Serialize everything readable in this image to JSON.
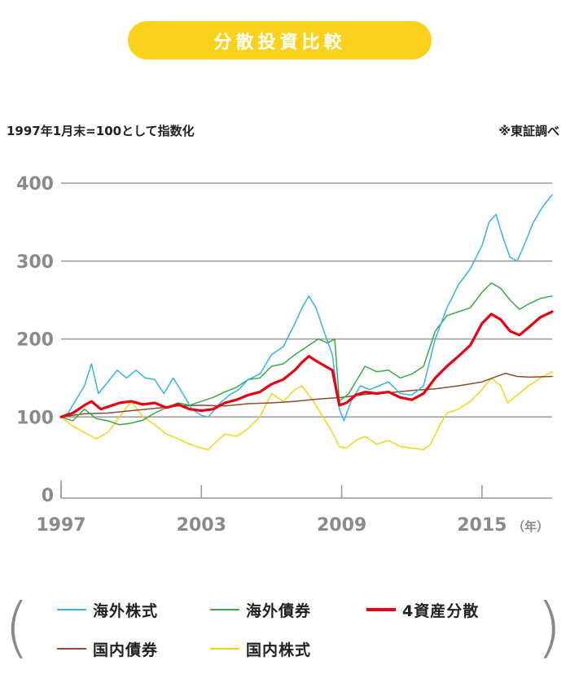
{
  "header": {
    "title": "分散投資比較"
  },
  "notes": {
    "base": "1997年1月末=100として指数化",
    "source": "※東証調べ"
  },
  "chart_data": {
    "type": "line",
    "ylim": [
      0,
      400
    ],
    "yticks": [
      {
        "v": 0,
        "label": "0"
      },
      {
        "v": 100,
        "label": "100"
      },
      {
        "v": 200,
        "label": "200"
      },
      {
        "v": 300,
        "label": "300"
      },
      {
        "v": 400,
        "label": "400"
      }
    ],
    "xlim": [
      1997.0,
      2018.0
    ],
    "xticks": [
      {
        "v": 1997,
        "label": "1997"
      },
      {
        "v": 2003,
        "label": "2003"
      },
      {
        "v": 2009,
        "label": "2009"
      },
      {
        "v": 2015,
        "label": "2015"
      }
    ],
    "x_unit": "（年）",
    "grid": true,
    "series": [
      {
        "name": "国内株式",
        "color": "#f5d21c",
        "width": 1.5,
        "points": [
          [
            1997.0,
            100
          ],
          [
            1997.5,
            88
          ],
          [
            1998.0,
            80
          ],
          [
            1998.5,
            72
          ],
          [
            1999.0,
            80
          ],
          [
            1999.5,
            100
          ],
          [
            2000.0,
            120
          ],
          [
            2000.5,
            100
          ],
          [
            2001.0,
            90
          ],
          [
            2001.5,
            78
          ],
          [
            2002.0,
            72
          ],
          [
            2002.5,
            65
          ],
          [
            2003.0,
            60
          ],
          [
            2003.3,
            58
          ],
          [
            2003.7,
            70
          ],
          [
            2004.0,
            78
          ],
          [
            2004.5,
            75
          ],
          [
            2005.0,
            85
          ],
          [
            2005.5,
            100
          ],
          [
            2006.0,
            130
          ],
          [
            2006.5,
            120
          ],
          [
            2007.0,
            135
          ],
          [
            2007.3,
            140
          ],
          [
            2007.8,
            120
          ],
          [
            2008.2,
            100
          ],
          [
            2008.6,
            80
          ],
          [
            2008.9,
            62
          ],
          [
            2009.2,
            60
          ],
          [
            2009.6,
            70
          ],
          [
            2010.0,
            75
          ],
          [
            2010.5,
            65
          ],
          [
            2011.0,
            70
          ],
          [
            2011.5,
            62
          ],
          [
            2012.0,
            60
          ],
          [
            2012.5,
            58
          ],
          [
            2012.8,
            65
          ],
          [
            2013.2,
            90
          ],
          [
            2013.5,
            105
          ],
          [
            2014.0,
            110
          ],
          [
            2014.5,
            120
          ],
          [
            2015.0,
            135
          ],
          [
            2015.4,
            150
          ],
          [
            2015.8,
            140
          ],
          [
            2016.1,
            118
          ],
          [
            2016.5,
            128
          ],
          [
            2017.0,
            140
          ],
          [
            2017.5,
            150
          ],
          [
            2018.0,
            158
          ]
        ]
      },
      {
        "name": "国内債券",
        "color": "#8c4a32",
        "width": 1.5,
        "points": [
          [
            1997.0,
            100
          ],
          [
            1998.0,
            104
          ],
          [
            1999.0,
            105
          ],
          [
            2000.0,
            108
          ],
          [
            2001.0,
            111
          ],
          [
            2002.0,
            114
          ],
          [
            2003.0,
            115
          ],
          [
            2004.0,
            114
          ],
          [
            2005.0,
            117
          ],
          [
            2006.0,
            118
          ],
          [
            2007.0,
            120
          ],
          [
            2008.0,
            123
          ],
          [
            2009.0,
            125
          ],
          [
            2010.0,
            129
          ],
          [
            2011.0,
            131
          ],
          [
            2012.0,
            134
          ],
          [
            2013.0,
            136
          ],
          [
            2014.0,
            140
          ],
          [
            2015.0,
            145
          ],
          [
            2016.0,
            156
          ],
          [
            2016.5,
            152
          ],
          [
            2017.0,
            151
          ],
          [
            2018.0,
            152
          ]
        ]
      },
      {
        "name": "海外債券",
        "color": "#3aa845",
        "width": 1.5,
        "points": [
          [
            1997.0,
            100
          ],
          [
            1997.5,
            95
          ],
          [
            1998.0,
            110
          ],
          [
            1998.5,
            98
          ],
          [
            1999.0,
            95
          ],
          [
            1999.5,
            90
          ],
          [
            2000.0,
            92
          ],
          [
            2000.5,
            96
          ],
          [
            2001.0,
            105
          ],
          [
            2001.5,
            112
          ],
          [
            2002.0,
            118
          ],
          [
            2002.5,
            115
          ],
          [
            2003.0,
            120
          ],
          [
            2003.5,
            125
          ],
          [
            2004.0,
            132
          ],
          [
            2004.5,
            138
          ],
          [
            2005.0,
            148
          ],
          [
            2005.5,
            150
          ],
          [
            2006.0,
            165
          ],
          [
            2006.5,
            168
          ],
          [
            2007.0,
            180
          ],
          [
            2007.5,
            190
          ],
          [
            2008.0,
            200
          ],
          [
            2008.4,
            195
          ],
          [
            2008.7,
            200
          ],
          [
            2008.9,
            120
          ],
          [
            2009.3,
            130
          ],
          [
            2009.7,
            150
          ],
          [
            2010.0,
            165
          ],
          [
            2010.5,
            158
          ],
          [
            2011.0,
            160
          ],
          [
            2011.5,
            150
          ],
          [
            2012.0,
            155
          ],
          [
            2012.5,
            165
          ],
          [
            2013.0,
            210
          ],
          [
            2013.5,
            230
          ],
          [
            2014.0,
            235
          ],
          [
            2014.5,
            240
          ],
          [
            2015.0,
            260
          ],
          [
            2015.4,
            272
          ],
          [
            2015.8,
            265
          ],
          [
            2016.2,
            250
          ],
          [
            2016.6,
            238
          ],
          [
            2017.0,
            245
          ],
          [
            2017.5,
            252
          ],
          [
            2018.0,
            255
          ]
        ]
      },
      {
        "name": "海外株式",
        "color": "#33b4e5",
        "width": 1.5,
        "points": [
          [
            1997.0,
            100
          ],
          [
            1997.3,
            105
          ],
          [
            1997.6,
            120
          ],
          [
            1998.0,
            140
          ],
          [
            1998.3,
            168
          ],
          [
            1998.6,
            130
          ],
          [
            1999.0,
            145
          ],
          [
            1999.4,
            160
          ],
          [
            1999.8,
            150
          ],
          [
            2000.2,
            160
          ],
          [
            2000.6,
            150
          ],
          [
            2001.0,
            148
          ],
          [
            2001.4,
            130
          ],
          [
            2001.8,
            150
          ],
          [
            2002.2,
            130
          ],
          [
            2002.6,
            110
          ],
          [
            2003.0,
            102
          ],
          [
            2003.3,
            100
          ],
          [
            2003.8,
            118
          ],
          [
            2004.2,
            128
          ],
          [
            2004.6,
            135
          ],
          [
            2005.0,
            148
          ],
          [
            2005.5,
            155
          ],
          [
            2006.0,
            180
          ],
          [
            2006.5,
            190
          ],
          [
            2007.0,
            220
          ],
          [
            2007.3,
            240
          ],
          [
            2007.6,
            255
          ],
          [
            2007.9,
            240
          ],
          [
            2008.3,
            205
          ],
          [
            2008.6,
            180
          ],
          [
            2008.9,
            110
          ],
          [
            2009.1,
            95
          ],
          [
            2009.4,
            120
          ],
          [
            2009.8,
            140
          ],
          [
            2010.2,
            135
          ],
          [
            2010.6,
            140
          ],
          [
            2011.0,
            145
          ],
          [
            2011.5,
            130
          ],
          [
            2012.0,
            128
          ],
          [
            2012.5,
            140
          ],
          [
            2013.0,
            200
          ],
          [
            2013.5,
            240
          ],
          [
            2014.0,
            270
          ],
          [
            2014.5,
            290
          ],
          [
            2015.0,
            320
          ],
          [
            2015.3,
            350
          ],
          [
            2015.6,
            360
          ],
          [
            2015.9,
            330
          ],
          [
            2016.2,
            305
          ],
          [
            2016.5,
            300
          ],
          [
            2016.8,
            320
          ],
          [
            2017.2,
            350
          ],
          [
            2017.6,
            370
          ],
          [
            2018.0,
            385
          ]
        ]
      },
      {
        "name": "4資産分散",
        "color": "#e60012",
        "width": 3.2,
        "points": [
          [
            1997.0,
            100
          ],
          [
            1997.5,
            105
          ],
          [
            1998.0,
            115
          ],
          [
            1998.3,
            120
          ],
          [
            1998.7,
            110
          ],
          [
            1999.0,
            113
          ],
          [
            1999.5,
            118
          ],
          [
            2000.0,
            120
          ],
          [
            2000.5,
            116
          ],
          [
            2001.0,
            118
          ],
          [
            2001.5,
            112
          ],
          [
            2002.0,
            116
          ],
          [
            2002.5,
            110
          ],
          [
            2003.0,
            108
          ],
          [
            2003.5,
            110
          ],
          [
            2004.0,
            118
          ],
          [
            2004.5,
            122
          ],
          [
            2005.0,
            128
          ],
          [
            2005.5,
            132
          ],
          [
            2006.0,
            142
          ],
          [
            2006.5,
            148
          ],
          [
            2007.0,
            160
          ],
          [
            2007.3,
            170
          ],
          [
            2007.6,
            178
          ],
          [
            2007.9,
            172
          ],
          [
            2008.3,
            165
          ],
          [
            2008.6,
            160
          ],
          [
            2008.9,
            115
          ],
          [
            2009.2,
            118
          ],
          [
            2009.6,
            128
          ],
          [
            2010.0,
            132
          ],
          [
            2010.5,
            130
          ],
          [
            2011.0,
            132
          ],
          [
            2011.5,
            125
          ],
          [
            2012.0,
            122
          ],
          [
            2012.5,
            130
          ],
          [
            2013.0,
            150
          ],
          [
            2013.5,
            165
          ],
          [
            2014.0,
            178
          ],
          [
            2014.5,
            192
          ],
          [
            2015.0,
            220
          ],
          [
            2015.4,
            232
          ],
          [
            2015.8,
            225
          ],
          [
            2016.2,
            210
          ],
          [
            2016.6,
            205
          ],
          [
            2017.0,
            215
          ],
          [
            2017.5,
            228
          ],
          [
            2018.0,
            235
          ]
        ]
      }
    ]
  },
  "legend": {
    "row1": [
      {
        "label": "海外株式",
        "color": "#33b4e5",
        "width": 2
      },
      {
        "label": "海外債券",
        "color": "#3aa845",
        "width": 2
      },
      {
        "label": "4資産分散",
        "color": "#e60012",
        "width": 4
      }
    ],
    "row2": [
      {
        "label": "国内債券",
        "color": "#8c4a32",
        "width": 2
      },
      {
        "label": "国内株式",
        "color": "#f5d21c",
        "width": 2
      }
    ]
  }
}
